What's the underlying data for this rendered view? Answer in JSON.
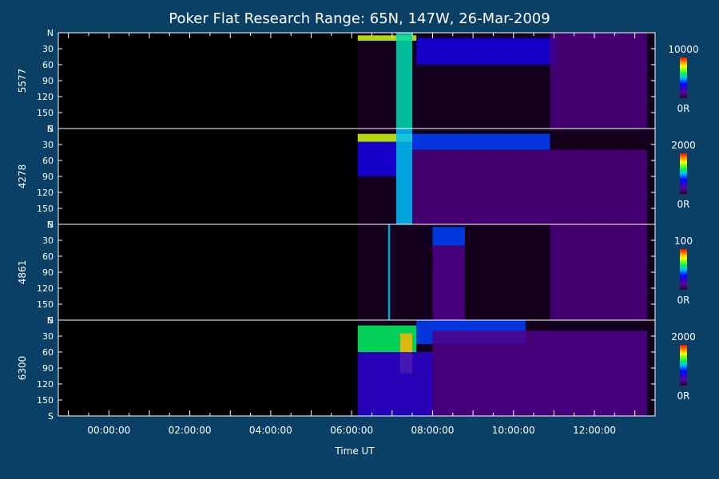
{
  "chart_data": {
    "type": "heatmap",
    "title": "Poker Flat Research Range: 65N, 147W, 26-Mar-2009",
    "xlabel": "Time UT",
    "x_ticks": [
      "00:00:00",
      "02:00:00",
      "04:00:00",
      "06:00:00",
      "08:00:00",
      "10:00:00",
      "12:00:00"
    ],
    "x_range_hours": [
      -1.25,
      13.5
    ],
    "data_start_hours": 6.15,
    "y_ticks": [
      "N",
      "30",
      "60",
      "90",
      "120",
      "150",
      "S"
    ],
    "y_range_deg": [
      0,
      180
    ],
    "colorscale": "rainbow (purple → blue → green → yellow → red)",
    "panels": [
      {
        "channel": "5577",
        "cbar_max": "10000",
        "cbar_min": "0R",
        "features": [
          {
            "t0": 6.15,
            "t1": 7.6,
            "e0": 5,
            "e1": 15,
            "level": 0.75
          },
          {
            "t0": 7.1,
            "t1": 7.5,
            "e0": 0,
            "e1": 180,
            "level": 0.55
          },
          {
            "t0": 7.6,
            "t1": 11.1,
            "e0": 10,
            "e1": 60,
            "level": 0.3
          },
          {
            "t0": 10.9,
            "t1": 13.3,
            "e0": 0,
            "e1": 180,
            "level": 0.1
          }
        ]
      },
      {
        "channel": "4278",
        "cbar_max": "2000",
        "cbar_min": "0R",
        "features": [
          {
            "t0": 6.15,
            "t1": 7.5,
            "e0": 10,
            "e1": 25,
            "level": 0.75
          },
          {
            "t0": 7.1,
            "t1": 7.5,
            "e0": 0,
            "e1": 180,
            "level": 0.5
          },
          {
            "t0": 6.15,
            "t1": 7.1,
            "e0": 25,
            "e1": 90,
            "level": 0.3
          },
          {
            "t0": 7.5,
            "t1": 10.9,
            "e0": 10,
            "e1": 40,
            "level": 0.4
          },
          {
            "t0": 7.5,
            "t1": 13.3,
            "e0": 40,
            "e1": 180,
            "level": 0.1
          }
        ]
      },
      {
        "channel": "4861",
        "cbar_max": "100",
        "cbar_min": "0R",
        "features": [
          {
            "t0": 6.9,
            "t1": 6.95,
            "e0": 0,
            "e1": 180,
            "level": 0.5
          },
          {
            "t0": 8.0,
            "t1": 8.8,
            "e0": 5,
            "e1": 40,
            "level": 0.4
          },
          {
            "t0": 8.0,
            "t1": 8.8,
            "e0": 40,
            "e1": 180,
            "level": 0.12
          },
          {
            "t0": 10.9,
            "t1": 13.3,
            "e0": 0,
            "e1": 180,
            "level": 0.1
          }
        ]
      },
      {
        "channel": "6300",
        "cbar_max": "2000",
        "cbar_min": "0R",
        "features": [
          {
            "t0": 6.15,
            "t1": 7.6,
            "e0": 10,
            "e1": 60,
            "level": 0.6
          },
          {
            "t0": 7.2,
            "t1": 7.5,
            "e0": 25,
            "e1": 100,
            "level": 0.85
          },
          {
            "t0": 7.6,
            "t1": 10.3,
            "e0": 0,
            "e1": 45,
            "level": 0.4
          },
          {
            "t0": 6.15,
            "t1": 8.0,
            "e0": 60,
            "e1": 180,
            "level": 0.25
          },
          {
            "t0": 8.0,
            "t1": 13.3,
            "e0": 20,
            "e1": 180,
            "level": 0.12
          }
        ]
      }
    ]
  }
}
